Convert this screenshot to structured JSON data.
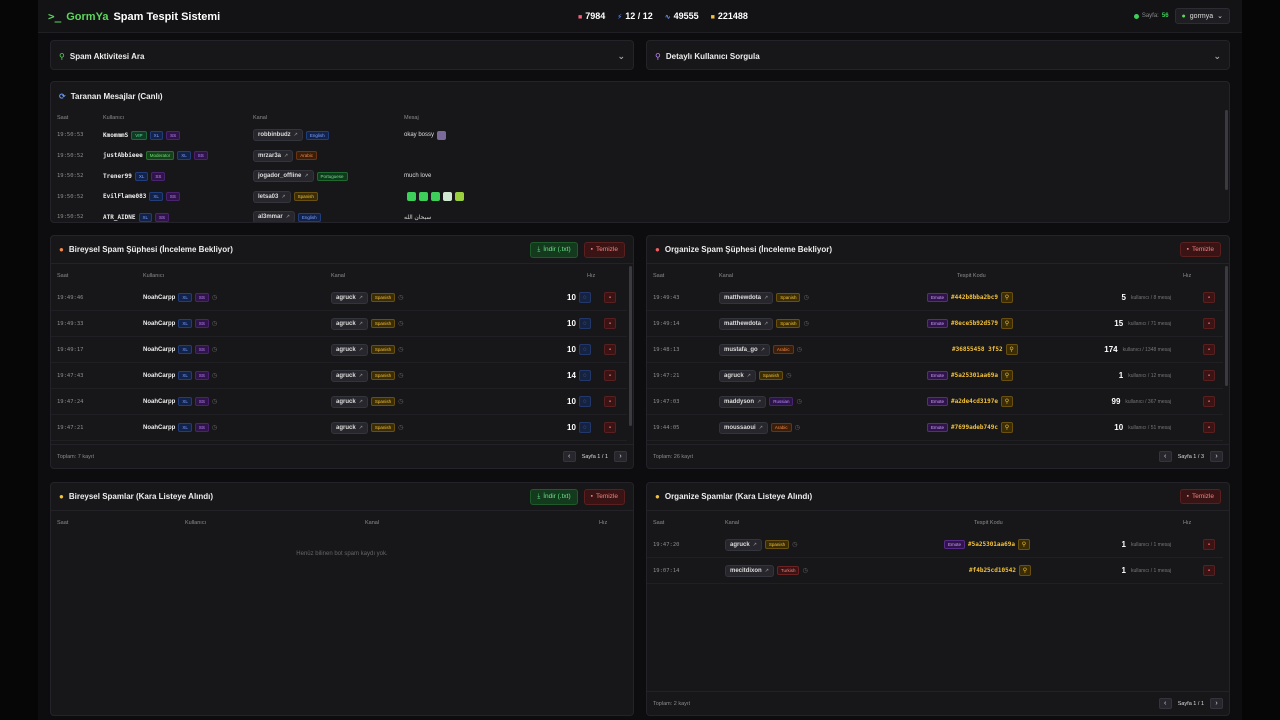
{
  "header": {
    "logo_symbol": ">_",
    "brand_a": "GormYa",
    "brand_b": "Spam Tespit Sistemi",
    "stats": [
      {
        "icon": "video-icon",
        "value": "7984"
      },
      {
        "icon": "bolt-icon",
        "value": "12 / 12"
      },
      {
        "icon": "signal-icon",
        "value": "49555"
      },
      {
        "icon": "database-icon",
        "value": "221488"
      }
    ],
    "online_label": "Sayfa:",
    "online_count": "56",
    "user": "gormya"
  },
  "search_spam": {
    "title": "Spam Aktivitesi Ara"
  },
  "search_user": {
    "title": "Detaylı Kullanıcı Sorgula"
  },
  "live": {
    "title": "Taranan Mesajlar (Canlı)",
    "cols": [
      "Saat",
      "Kullanıcı",
      "Kanal",
      "Mesaj"
    ],
    "rows": [
      {
        "time": "19:50:53",
        "user": "KmommmS",
        "tags": [
          "VIP",
          "XL",
          "SS"
        ],
        "channel": "robbinbudz",
        "lang": "English",
        "msg": "okay bossy"
      },
      {
        "time": "19:50:52",
        "user": "justAbbieee",
        "tags": [
          "Moderator",
          "XL",
          "SS"
        ],
        "channel": "mrzar3a",
        "lang": "Arabic",
        "msg": ""
      },
      {
        "time": "19:50:52",
        "user": "Trener99",
        "tags": [
          "XL",
          "SS"
        ],
        "channel": "jogador_offline",
        "lang": "Portuguese",
        "msg": "much love"
      },
      {
        "time": "19:50:52",
        "user": "EvilFlame083",
        "tags": [
          "XL",
          "SS"
        ],
        "channel": "letsa03",
        "lang": "Spanish",
        "msg": ""
      },
      {
        "time": "19:50:52",
        "user": "ATR_AIDNE",
        "tags": [
          "XL",
          "SS"
        ],
        "channel": "al3mmar",
        "lang": "English",
        "msg": "سبحان الله"
      }
    ]
  },
  "ind_pending": {
    "title": "Bireysel Spam Şüphesi (İnceleme Bekliyor)",
    "download": "İndir (.txt)",
    "clear": "Temizle",
    "cols": [
      "Saat",
      "Kullanıcı",
      "Kanal",
      "Hız"
    ],
    "rows": [
      {
        "time": "19:49:46",
        "user": "NoahCarpp",
        "channel": "agruck",
        "lang": "Spanish",
        "speed": "10"
      },
      {
        "time": "19:49:33",
        "user": "NoahCarpp",
        "channel": "agruck",
        "lang": "Spanish",
        "speed": "10"
      },
      {
        "time": "19:49:17",
        "user": "NoahCarpp",
        "channel": "agruck",
        "lang": "Spanish",
        "speed": "10"
      },
      {
        "time": "19:47:43",
        "user": "NoahCarpp",
        "channel": "agruck",
        "lang": "Spanish",
        "speed": "14"
      },
      {
        "time": "19:47:24",
        "user": "NoahCarpp",
        "channel": "agruck",
        "lang": "Spanish",
        "speed": "10"
      },
      {
        "time": "19:47:21",
        "user": "NoahCarpp",
        "channel": "agruck",
        "lang": "Spanish",
        "speed": "10"
      }
    ],
    "total": "Toplam: 7 kayıt",
    "page": "Sayfa 1 / 1"
  },
  "org_pending": {
    "title": "Organize Spam Şüphesi (İnceleme Bekliyor)",
    "clear": "Temizle",
    "cols": [
      "Saat",
      "Kanal",
      "Tespit Kodu",
      "Hız"
    ],
    "rows": [
      {
        "time": "19:49:43",
        "channel": "matthewdota",
        "lang": "Spanish",
        "emote": true,
        "code": "#442b8bba2bc9",
        "speed": "5",
        "sub": "kullanıcı / 8 mesaj"
      },
      {
        "time": "19:49:14",
        "channel": "matthewdota",
        "lang": "Spanish",
        "emote": true,
        "code": "#8ece5b92d579",
        "speed": "15",
        "sub": "kullanıcı / 71 mesaj"
      },
      {
        "time": "19:48:13",
        "channel": "mustafa_go",
        "lang": "Arabic",
        "emote": false,
        "code": "#36855458 3f52",
        "speed": "174",
        "sub": "kullanıcı / 1348 mesaj"
      },
      {
        "time": "19:47:21",
        "channel": "agruck",
        "lang": "Spanish",
        "emote": true,
        "code": "#5a25301aa69a",
        "speed": "1",
        "sub": "kullanıcı / 12 mesaj"
      },
      {
        "time": "19:47:03",
        "channel": "maddyson",
        "lang": "Russian",
        "emote": true,
        "code": "#a2de4cd3197e",
        "speed": "99",
        "sub": "kullanıcı / 367 mesaj"
      },
      {
        "time": "19:44:05",
        "channel": "moussaoui",
        "lang": "Arabic",
        "emote": true,
        "code": "#7699adeb749c",
        "speed": "10",
        "sub": "kullanıcı / 51 mesaj"
      }
    ],
    "total": "Toplam: 26 kayıt",
    "page": "Sayfa 1 / 3"
  },
  "ind_black": {
    "title": "Bireysel Spamlar (Kara Listeye Alındı)",
    "download": "İndir (.txt)",
    "clear": "Temizle",
    "cols": [
      "Saat",
      "Kullanıcı",
      "Kanal",
      "Hız"
    ],
    "empty": "Henüz bilinen bot spam kaydı yok."
  },
  "org_black": {
    "title": "Organize Spamlar (Kara Listeye Alındı)",
    "clear": "Temizle",
    "cols": [
      "Saat",
      "Kanal",
      "Tespit Kodu",
      "Hız"
    ],
    "rows": [
      {
        "time": "19:47:20",
        "channel": "agruck",
        "lang": "Spanish",
        "emote": true,
        "code": "#5a25301aa69a",
        "speed": "1",
        "sub": "kullanıcı / 1 mesaj"
      },
      {
        "time": "19:07:14",
        "channel": "mecitdixon",
        "lang": "Turkish",
        "emote": false,
        "code": "#f4b25cd10542",
        "speed": "1",
        "sub": "kullanıcı / 1 mesaj"
      }
    ],
    "total": "Toplam: 2 kayıt",
    "page": "Sayfa 1 / 1"
  },
  "emote_label": "Emote",
  "colors": {
    "accent": "#5cd65c",
    "brand_bg": "#131316"
  }
}
